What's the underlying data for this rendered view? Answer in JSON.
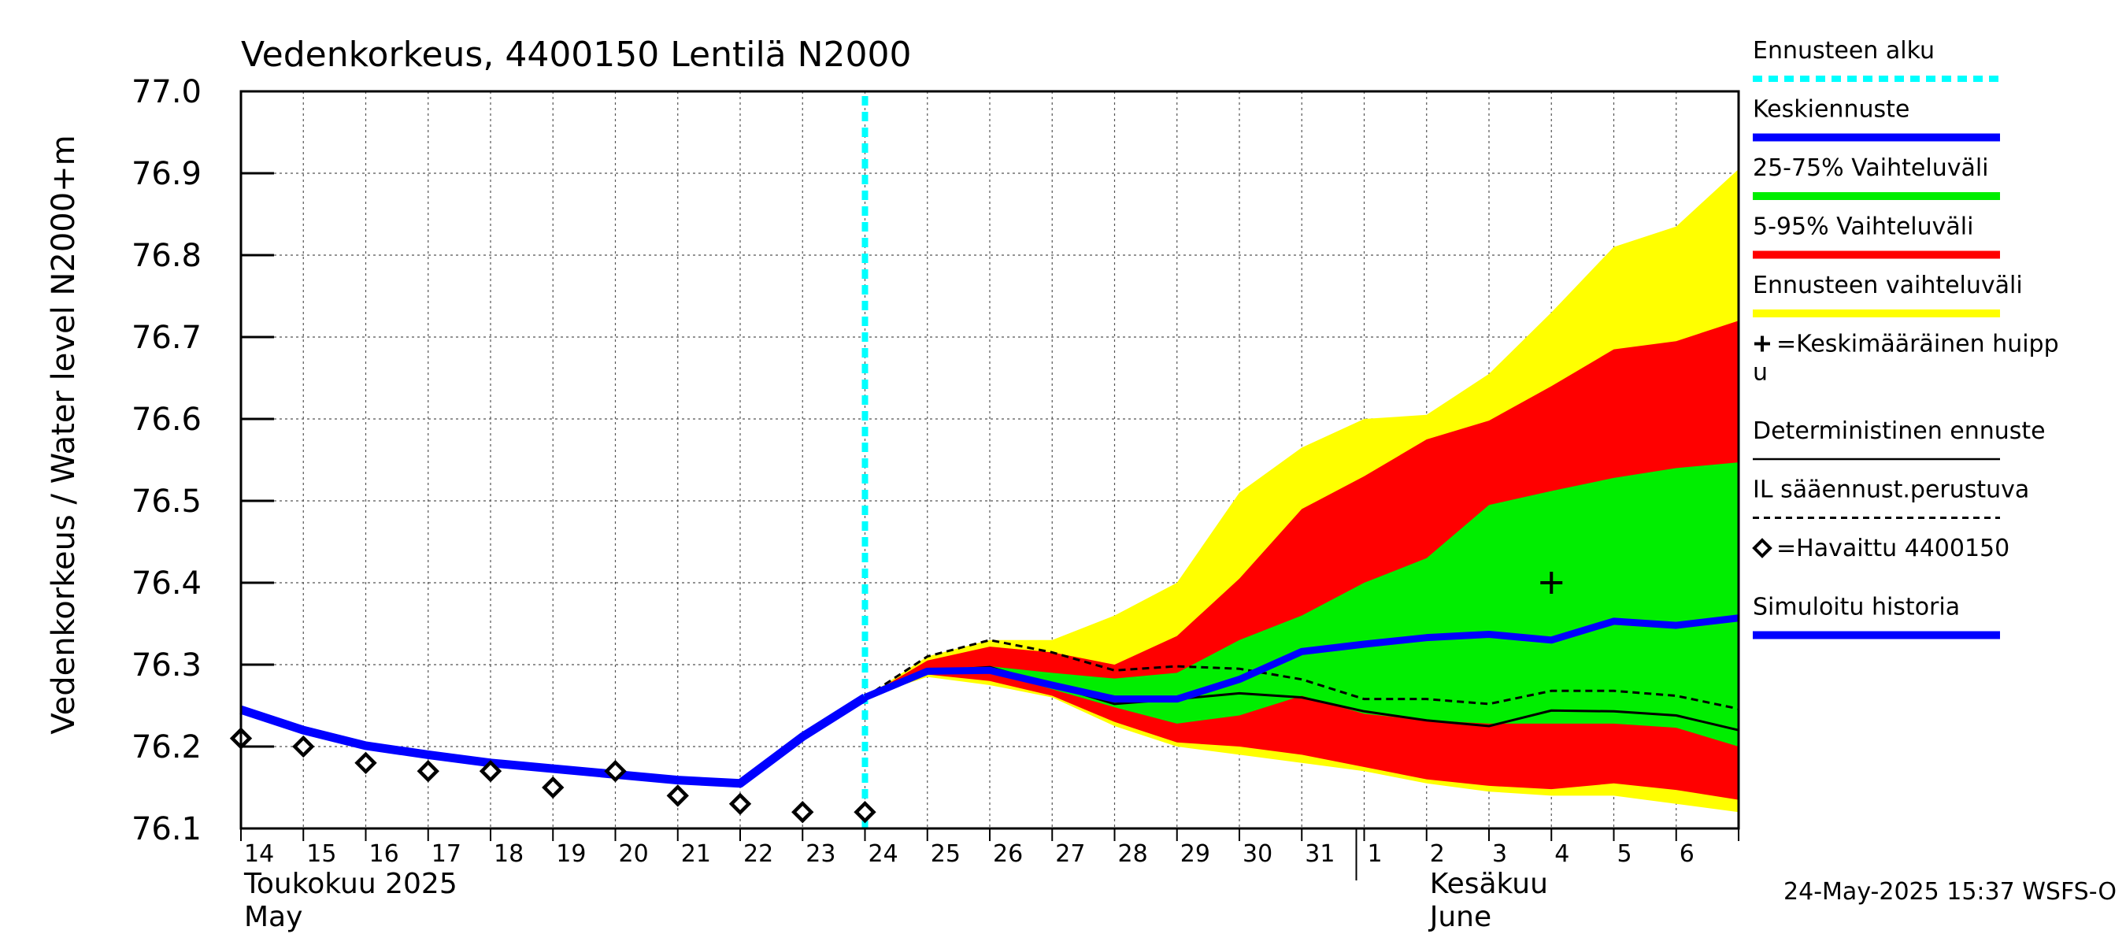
{
  "chart_data": {
    "type": "line",
    "title": "Vedenkorkeus, 4400150 Lentilä N2000",
    "ylabel": "Vedenkorkeus / Water level   N2000+m",
    "ylim": [
      76.1,
      77.0
    ],
    "yticks": [
      "76.1",
      "76.2",
      "76.3",
      "76.4",
      "76.5",
      "76.6",
      "76.7",
      "76.8",
      "76.9",
      "77.0"
    ],
    "x_start": "2025-05-14",
    "x_end": "2025-06-07",
    "x_day_labels": [
      "14",
      "15",
      "16",
      "17",
      "18",
      "19",
      "20",
      "21",
      "22",
      "23",
      "24",
      "25",
      "26",
      "27",
      "28",
      "29",
      "30",
      "31",
      "1",
      "2",
      "3",
      "4",
      "5",
      "6"
    ],
    "month_labels": [
      {
        "line1": "Toukokuu  2025",
        "line2": "May"
      },
      {
        "line1": "Kesäkuu",
        "line2": "June"
      }
    ],
    "forecast_start": "2025-05-24",
    "series": [
      {
        "name": "Simuloitu historia",
        "color": "#0000ff",
        "x": [
          "2025-05-14",
          "2025-05-15",
          "2025-05-16",
          "2025-05-17",
          "2025-05-18",
          "2025-05-19",
          "2025-05-20",
          "2025-05-21",
          "2025-05-22",
          "2025-05-23",
          "2025-05-24"
        ],
        "values": [
          76.245,
          76.22,
          76.201,
          76.19,
          76.18,
          76.173,
          76.166,
          76.159,
          76.155,
          76.212,
          76.26
        ]
      },
      {
        "name": "Keskiennuste",
        "color": "#0000ff",
        "x": [
          "2025-05-24",
          "2025-05-25",
          "2025-05-26",
          "2025-05-27",
          "2025-05-28",
          "2025-05-29",
          "2025-05-30",
          "2025-05-31",
          "2025-06-01",
          "2025-06-02",
          "2025-06-03",
          "2025-06-04",
          "2025-06-05",
          "2025-06-06",
          "2025-06-07"
        ],
        "values": [
          76.26,
          76.292,
          76.293,
          76.275,
          76.258,
          76.258,
          76.282,
          76.316,
          76.325,
          76.333,
          76.337,
          76.33,
          76.353,
          76.348,
          76.357
        ]
      },
      {
        "name": "Deterministinen ennuste",
        "color": "#000000",
        "x": [
          "2025-05-24",
          "2025-05-25",
          "2025-05-26",
          "2025-05-27",
          "2025-05-28",
          "2025-05-29",
          "2025-05-30",
          "2025-05-31",
          "2025-06-01",
          "2025-06-02",
          "2025-06-03",
          "2025-06-04",
          "2025-06-05",
          "2025-06-06",
          "2025-06-07"
        ],
        "values": [
          76.26,
          76.292,
          76.297,
          76.275,
          76.252,
          76.258,
          76.265,
          76.26,
          76.243,
          76.232,
          76.225,
          76.244,
          76.243,
          76.238,
          76.22
        ]
      },
      {
        "name": "IL sääennust.perustuva",
        "color": "#000000",
        "x": [
          "2025-05-24",
          "2025-05-25",
          "2025-05-26",
          "2025-05-27",
          "2025-05-28",
          "2025-05-29",
          "2025-05-30",
          "2025-05-31",
          "2025-06-01",
          "2025-06-02",
          "2025-06-03",
          "2025-06-04",
          "2025-06-05",
          "2025-06-06",
          "2025-06-07"
        ],
        "values": [
          76.26,
          76.31,
          76.33,
          76.315,
          76.293,
          76.298,
          76.295,
          76.282,
          76.258,
          76.258,
          76.252,
          76.268,
          76.268,
          76.262,
          76.246
        ]
      },
      {
        "name": "Havaittu 4400150",
        "color": "#000000",
        "x": [
          "2025-05-14",
          "2025-05-15",
          "2025-05-16",
          "2025-05-17",
          "2025-05-18",
          "2025-05-19",
          "2025-05-20",
          "2025-05-21",
          "2025-05-22",
          "2025-05-23",
          "2025-05-24"
        ],
        "values": [
          76.21,
          76.2,
          76.18,
          76.17,
          76.17,
          76.15,
          76.17,
          76.14,
          76.13,
          76.12,
          76.12
        ]
      }
    ],
    "bands": [
      {
        "name": "Ennusteen vaihteluväli",
        "color": "#ffff00",
        "x": [
          "2025-05-24",
          "2025-05-25",
          "2025-05-26",
          "2025-05-27",
          "2025-05-28",
          "2025-05-29",
          "2025-05-30",
          "2025-05-31",
          "2025-06-01",
          "2025-06-02",
          "2025-06-03",
          "2025-06-04",
          "2025-06-05",
          "2025-06-06",
          "2025-06-07"
        ],
        "upper": [
          76.26,
          76.31,
          76.33,
          76.33,
          76.36,
          76.4,
          76.51,
          76.565,
          76.6,
          76.605,
          76.655,
          76.73,
          76.81,
          76.835,
          76.905
        ],
        "lower": [
          76.26,
          76.285,
          76.275,
          76.26,
          76.225,
          76.2,
          76.19,
          76.18,
          76.17,
          76.155,
          76.145,
          76.14,
          76.14,
          76.13,
          76.12
        ]
      },
      {
        "name": "5-95% Vaihteluväli",
        "color": "#ff0000",
        "x": [
          "2025-05-24",
          "2025-05-25",
          "2025-05-26",
          "2025-05-27",
          "2025-05-28",
          "2025-05-29",
          "2025-05-30",
          "2025-05-31",
          "2025-06-01",
          "2025-06-02",
          "2025-06-03",
          "2025-06-04",
          "2025-06-05",
          "2025-06-06",
          "2025-06-07"
        ],
        "upper": [
          76.26,
          76.305,
          76.322,
          76.315,
          76.3,
          76.335,
          76.405,
          76.49,
          76.53,
          76.575,
          76.598,
          76.64,
          76.685,
          76.695,
          76.72
        ],
        "lower": [
          76.26,
          76.288,
          76.28,
          76.262,
          76.23,
          76.205,
          76.2,
          76.19,
          76.175,
          76.16,
          76.152,
          76.148,
          76.155,
          76.147,
          76.135
        ]
      },
      {
        "name": "25-75% Vaihteluväli",
        "color": "#00ee00",
        "x": [
          "2025-05-24",
          "2025-05-25",
          "2025-05-26",
          "2025-05-27",
          "2025-05-28",
          "2025-05-29",
          "2025-05-30",
          "2025-05-31",
          "2025-06-01",
          "2025-06-02",
          "2025-06-03",
          "2025-06-04",
          "2025-06-05",
          "2025-06-06",
          "2025-06-07"
        ],
        "upper": [
          76.26,
          76.295,
          76.298,
          76.29,
          76.283,
          76.29,
          76.33,
          76.36,
          76.4,
          76.43,
          76.495,
          76.512,
          76.528,
          76.54,
          76.547
        ],
        "lower": [
          76.26,
          76.29,
          76.292,
          76.27,
          76.248,
          76.228,
          76.238,
          76.262,
          76.24,
          76.232,
          76.228,
          76.228,
          76.228,
          76.223,
          76.2
        ]
      }
    ],
    "peak_marker": {
      "name": "=Keskimääräinen huippu",
      "x": "2025-06-04",
      "y": 76.4
    },
    "legend_position": "right",
    "grid": true
  },
  "legend_items": [
    {
      "label": "Ennusteen alku",
      "kind": "dotted",
      "color": "#00ffff"
    },
    {
      "label": "Keskiennuste",
      "kind": "thick",
      "color": "#0000ff"
    },
    {
      "label": "25-75% Vaihteluväli",
      "kind": "thick",
      "color": "#00ee00"
    },
    {
      "label": "5-95% Vaihteluväli",
      "kind": "thick",
      "color": "#ff0000"
    },
    {
      "label": "Ennusteen vaihteluväli",
      "kind": "thick",
      "color": "#ffff00"
    },
    {
      "label": "=Keskimääräinen huipp",
      "label2": "u",
      "kind": "plus",
      "color": "#000000"
    },
    {
      "label": "Deterministinen ennuste",
      "kind": "thin",
      "color": "#000000"
    },
    {
      "label": "IL sääennust.perustuva",
      "kind": "dashed",
      "color": "#000000"
    },
    {
      "label": "=Havaittu 4400150",
      "kind": "diamond",
      "color": "#000000"
    },
    {
      "label": "Simuloitu historia",
      "kind": "thick",
      "color": "#0000ff"
    }
  ],
  "timestamp": "24-May-2025 15:37 WSFS-O"
}
